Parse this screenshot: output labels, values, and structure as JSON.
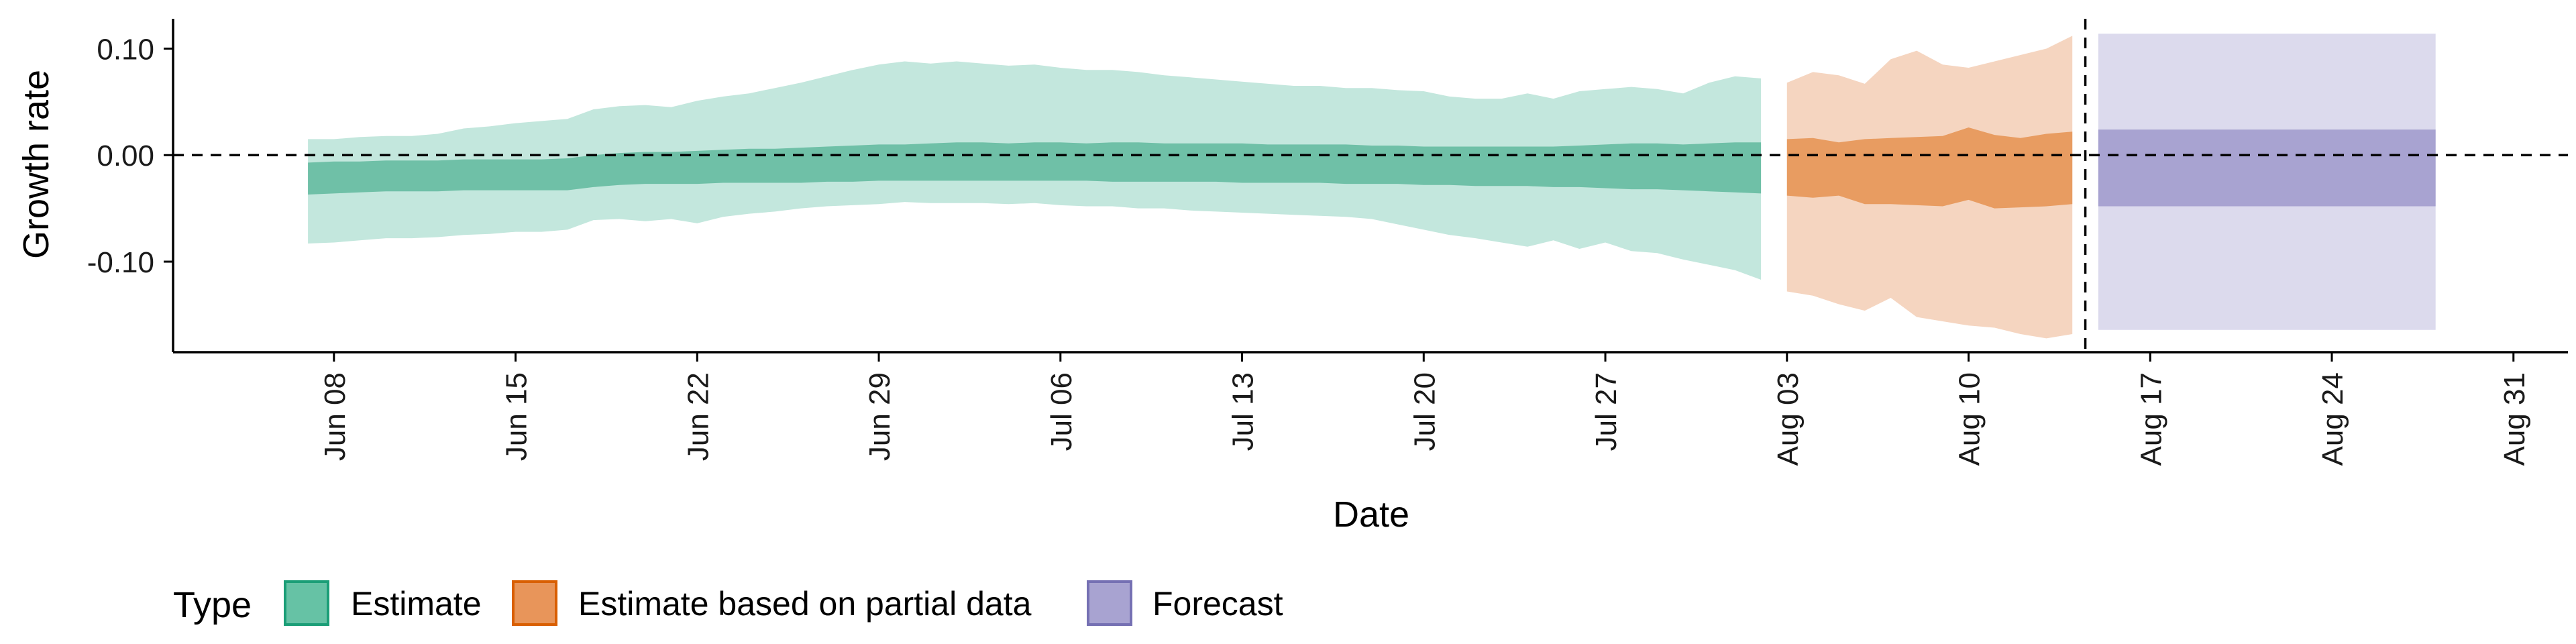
{
  "chart_data": {
    "type": "area",
    "xlabel": "Date",
    "ylabel": "Growth rate",
    "x_ticks": [
      "Jun 08",
      "Jun 15",
      "Jun 22",
      "Jun 29",
      "Jul 06",
      "Jul 13",
      "Jul 20",
      "Jul 27",
      "Aug 03",
      "Aug 10",
      "Aug 17",
      "Aug 24",
      "Aug 31"
    ],
    "x_tick_days": [
      7,
      14,
      21,
      28,
      35,
      42,
      49,
      56,
      63,
      70,
      77,
      84,
      91
    ],
    "y_ticks": [
      {
        "value": 0.1,
        "label": "0.10"
      },
      {
        "value": 0.0,
        "label": "0.00"
      },
      {
        "value": -0.1,
        "label": "-0.10"
      }
    ],
    "xlim_days": [
      0.8,
      93.1
    ],
    "ylim": [
      -0.185,
      0.128
    ],
    "reference_hline": 0.0,
    "reference_vline_day": 74.5,
    "legend": {
      "title": "Type",
      "position": "bottom-left",
      "entries": [
        {
          "label": "Estimate",
          "fill": "#66c2a5",
          "stroke": "#1b9e77"
        },
        {
          "label": "Estimate based on partial data",
          "fill": "#e8955a",
          "stroke": "#d95f02"
        },
        {
          "label": "Forecast",
          "fill": "#a8a3d1",
          "stroke": "#7570b3"
        }
      ]
    },
    "series": [
      {
        "name": "Estimate",
        "colors": {
          "outer": "#c3e7dd",
          "inner": "#6fc0a7"
        },
        "days": [
          6,
          7,
          8,
          9,
          10,
          11,
          12,
          13,
          14,
          15,
          16,
          17,
          18,
          19,
          20,
          21,
          22,
          23,
          24,
          25,
          26,
          27,
          28,
          29,
          30,
          31,
          32,
          33,
          34,
          35,
          36,
          37,
          38,
          39,
          40,
          41,
          42,
          43,
          44,
          45,
          46,
          47,
          48,
          49,
          50,
          51,
          52,
          53,
          54,
          55,
          56,
          57,
          58,
          59,
          60,
          61,
          62
        ],
        "outer_upper": [
          0.015,
          0.015,
          0.017,
          0.018,
          0.018,
          0.02,
          0.025,
          0.027,
          0.03,
          0.032,
          0.034,
          0.043,
          0.046,
          0.047,
          0.045,
          0.051,
          0.055,
          0.058,
          0.063,
          0.068,
          0.074,
          0.08,
          0.085,
          0.088,
          0.086,
          0.088,
          0.086,
          0.084,
          0.085,
          0.082,
          0.08,
          0.08,
          0.078,
          0.075,
          0.073,
          0.071,
          0.069,
          0.067,
          0.065,
          0.065,
          0.063,
          0.063,
          0.061,
          0.06,
          0.055,
          0.053,
          0.053,
          0.058,
          0.053,
          0.06,
          0.062,
          0.064,
          0.062,
          0.058,
          0.068,
          0.074,
          0.072
        ],
        "outer_lower": [
          -0.083,
          -0.082,
          -0.08,
          -0.078,
          -0.078,
          -0.077,
          -0.075,
          -0.074,
          -0.072,
          -0.072,
          -0.07,
          -0.061,
          -0.06,
          -0.062,
          -0.06,
          -0.064,
          -0.058,
          -0.055,
          -0.053,
          -0.05,
          -0.048,
          -0.047,
          -0.046,
          -0.044,
          -0.045,
          -0.045,
          -0.045,
          -0.046,
          -0.045,
          -0.047,
          -0.048,
          -0.048,
          -0.05,
          -0.05,
          -0.052,
          -0.053,
          -0.054,
          -0.055,
          -0.056,
          -0.057,
          -0.058,
          -0.06,
          -0.065,
          -0.07,
          -0.075,
          -0.078,
          -0.082,
          -0.086,
          -0.08,
          -0.088,
          -0.082,
          -0.09,
          -0.092,
          -0.098,
          -0.103,
          -0.108,
          -0.117
        ],
        "inner_upper": [
          -0.007,
          -0.006,
          -0.006,
          -0.005,
          -0.005,
          -0.005,
          -0.004,
          -0.004,
          -0.004,
          -0.004,
          -0.003,
          0.0,
          0.002,
          0.003,
          0.003,
          0.004,
          0.005,
          0.006,
          0.006,
          0.007,
          0.008,
          0.009,
          0.01,
          0.01,
          0.011,
          0.012,
          0.012,
          0.011,
          0.012,
          0.012,
          0.011,
          0.012,
          0.012,
          0.011,
          0.011,
          0.011,
          0.011,
          0.01,
          0.01,
          0.01,
          0.01,
          0.009,
          0.009,
          0.008,
          0.008,
          0.008,
          0.008,
          0.008,
          0.008,
          0.009,
          0.01,
          0.011,
          0.011,
          0.01,
          0.011,
          0.012,
          0.012
        ],
        "inner_lower": [
          -0.037,
          -0.036,
          -0.035,
          -0.034,
          -0.034,
          -0.034,
          -0.033,
          -0.033,
          -0.033,
          -0.033,
          -0.033,
          -0.03,
          -0.028,
          -0.027,
          -0.027,
          -0.027,
          -0.026,
          -0.026,
          -0.026,
          -0.026,
          -0.025,
          -0.025,
          -0.024,
          -0.024,
          -0.024,
          -0.024,
          -0.024,
          -0.024,
          -0.024,
          -0.024,
          -0.024,
          -0.025,
          -0.025,
          -0.025,
          -0.025,
          -0.025,
          -0.026,
          -0.026,
          -0.026,
          -0.026,
          -0.027,
          -0.027,
          -0.027,
          -0.028,
          -0.028,
          -0.029,
          -0.029,
          -0.029,
          -0.03,
          -0.03,
          -0.031,
          -0.032,
          -0.032,
          -0.033,
          -0.034,
          -0.035,
          -0.036
        ]
      },
      {
        "name": "Estimate based on partial data",
        "colors": {
          "outer": "#f5d5c0",
          "inner": "#e89c61"
        },
        "days": [
          63,
          64,
          65,
          66,
          67,
          68,
          69,
          70,
          71,
          72,
          73,
          74
        ],
        "outer_upper": [
          0.068,
          0.078,
          0.075,
          0.067,
          0.09,
          0.098,
          0.085,
          0.082,
          0.088,
          0.094,
          0.1,
          0.112
        ],
        "outer_lower": [
          -0.128,
          -0.132,
          -0.14,
          -0.146,
          -0.134,
          -0.152,
          -0.156,
          -0.16,
          -0.162,
          -0.168,
          -0.172,
          -0.168
        ],
        "inner_upper": [
          0.015,
          0.016,
          0.012,
          0.015,
          0.016,
          0.017,
          0.018,
          0.026,
          0.019,
          0.016,
          0.02,
          0.022
        ],
        "inner_lower": [
          -0.038,
          -0.04,
          -0.038,
          -0.046,
          -0.046,
          -0.047,
          -0.048,
          -0.042,
          -0.05,
          -0.049,
          -0.048,
          -0.046
        ]
      },
      {
        "name": "Forecast",
        "colors": {
          "outer": "#dcdaed",
          "inner": "#a8a3d1"
        },
        "days": [
          75,
          88
        ],
        "outer_upper": [
          0.114,
          0.114
        ],
        "outer_lower": [
          -0.164,
          -0.164
        ],
        "inner_upper": [
          0.024,
          0.024
        ],
        "inner_lower": [
          -0.048,
          -0.048
        ]
      }
    ]
  }
}
